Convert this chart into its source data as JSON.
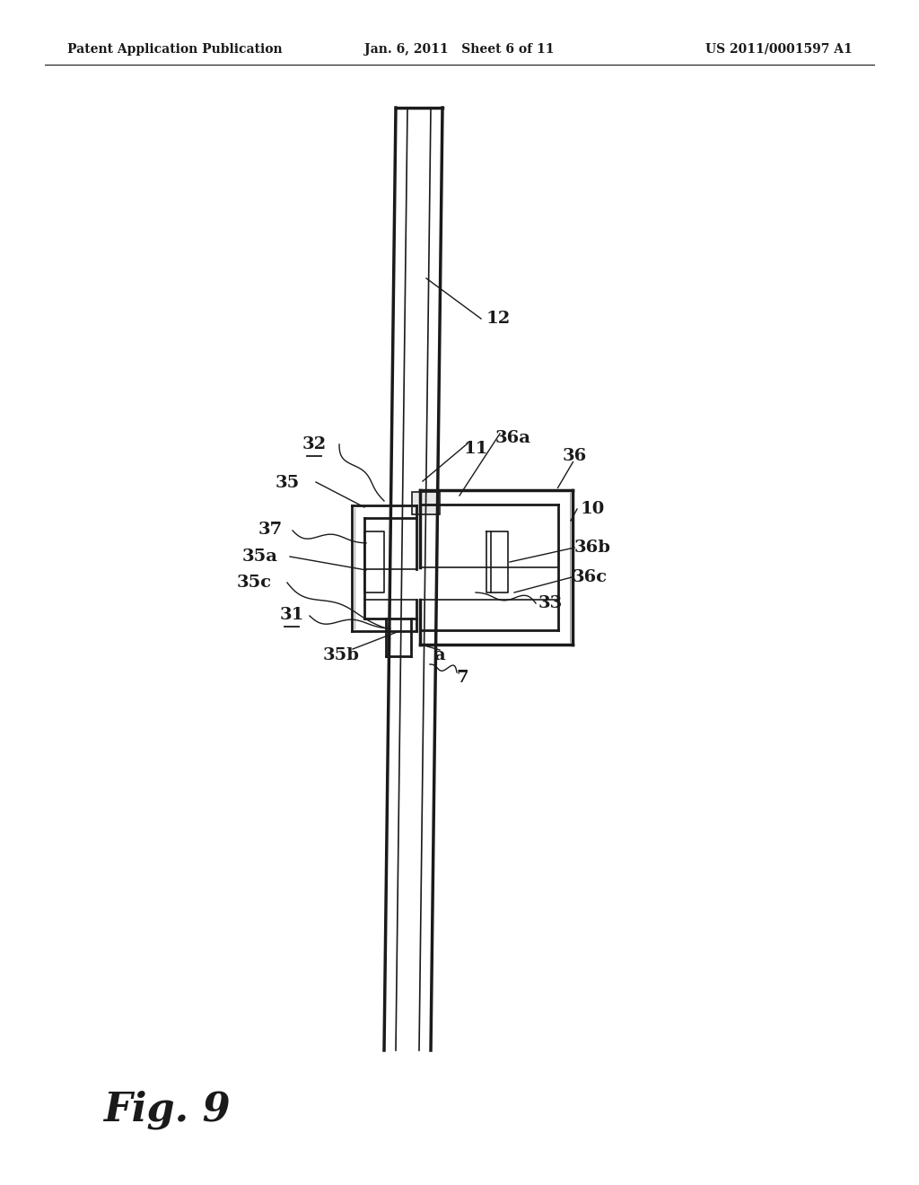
{
  "bg_color": "#ffffff",
  "line_color": "#1a1a1a",
  "header_left": "Patent Application Publication",
  "header_mid": "Jan. 6, 2011   Sheet 6 of 11",
  "header_right": "US 2011/0001597 A1",
  "figure_label": "Fig. 9",
  "title_fontsize": 10,
  "label_fontsize": 14,
  "fig_label_fontsize": 32
}
